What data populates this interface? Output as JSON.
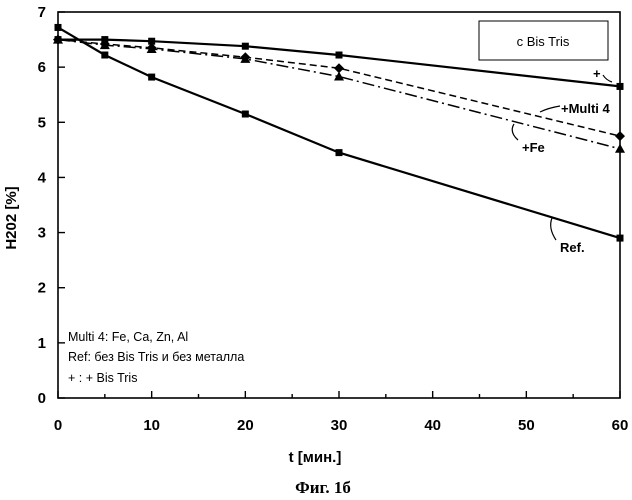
{
  "figure": {
    "caption": "Фиг. 1б",
    "legend_box": "c Bis Tris",
    "notes": [
      "Multi 4: Fe, Ca, Zn, Al",
      "Ref: без Bis Tris и без металла",
      "+ : + Bis Tris"
    ]
  },
  "chart_data": {
    "type": "line",
    "xlabel": "t [мин.]",
    "ylabel": "H202 [%]",
    "xlim": [
      0,
      60
    ],
    "ylim": [
      0,
      7
    ],
    "xticks": [
      "0",
      "10",
      "20",
      "30",
      "40",
      "50",
      "60"
    ],
    "yticks": [
      "0",
      "1",
      "2",
      "3",
      "4",
      "5",
      "6",
      "7"
    ],
    "grid": false,
    "series": [
      {
        "name": "+",
        "marker": "square",
        "dash": "solid",
        "x": [
          0,
          5,
          10,
          20,
          30,
          60
        ],
        "y": [
          6.5,
          6.5,
          6.47,
          6.38,
          6.22,
          5.65
        ]
      },
      {
        "name": "Ref.",
        "marker": "square",
        "dash": "solid",
        "x": [
          0,
          5,
          10,
          20,
          30,
          60
        ],
        "y": [
          6.72,
          6.22,
          5.82,
          5.15,
          4.45,
          2.9
        ]
      },
      {
        "name": "+Multi 4",
        "marker": "diamond",
        "dash": "dashed",
        "x": [
          0,
          5,
          10,
          20,
          30,
          60
        ],
        "y": [
          6.5,
          6.42,
          6.35,
          6.18,
          5.98,
          4.75
        ]
      },
      {
        "name": "+Fe",
        "marker": "triangle",
        "dash": "dashdot",
        "x": [
          0,
          5,
          10,
          20,
          30,
          60
        ],
        "y": [
          6.5,
          6.4,
          6.33,
          6.15,
          5.83,
          4.52
        ]
      }
    ]
  }
}
